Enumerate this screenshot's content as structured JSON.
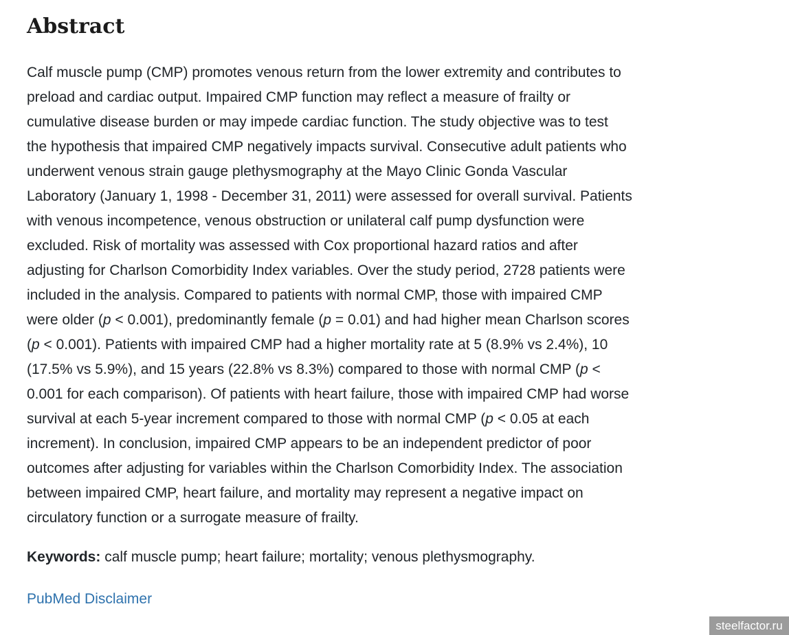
{
  "colors": {
    "page_background": "#ffffff",
    "heading_text": "#1b1b1b",
    "body_text": "#212529",
    "link_blue": "#2e72ad",
    "watermark_background": "#9b9b9b",
    "watermark_text": "#ffffff"
  },
  "abstract": {
    "heading": "Abstract",
    "body_segments": [
      {
        "text": "Calf muscle pump (CMP) promotes venous return from the lower extremity and contributes to\npreload and cardiac output. Impaired CMP function may reflect a measure of frailty or\ncumulative disease burden or may impede cardiac function. The study objective was to test\nthe hypothesis that impaired CMP negatively impacts survival. Consecutive adult patients who\nunderwent venous strain gauge plethysmography at the Mayo Clinic Gonda Vascular\nLaboratory (January 1, 1998 - December 31, 2011) were assessed for overall survival. Patients\nwith venous incompetence, venous obstruction or unilateral calf pump dysfunction were\nexcluded. Risk of mortality was assessed with Cox proportional hazard ratios and after\nadjusting for Charlson Comorbidity Index variables. Over the study period, 2728 patients were\nincluded in the analysis. Compared to patients with normal CMP, those with impaired CMP\nwere older ("
      },
      {
        "text": "p",
        "italic": true
      },
      {
        "text": " < 0.001), predominantly female ("
      },
      {
        "text": "p",
        "italic": true
      },
      {
        "text": " = 0.01) and had higher mean Charlson scores\n("
      },
      {
        "text": "p",
        "italic": true
      },
      {
        "text": " < 0.001). Patients with impaired CMP had a higher mortality rate at 5 (8.9% vs 2.4%), 10\n(17.5% vs 5.9%), and 15 years (22.8% vs 8.3%) compared to those with normal CMP ("
      },
      {
        "text": "p",
        "italic": true
      },
      {
        "text": " <\n0.001 for each comparison). Of patients with heart failure, those with impaired CMP had worse\nsurvival at each 5-year increment compared to those with normal CMP ("
      },
      {
        "text": "p",
        "italic": true
      },
      {
        "text": " < 0.05 at each\nincrement). In conclusion, impaired CMP appears to be an independent predictor of poor\noutcomes after adjusting for variables within the Charlson Comorbidity Index. The association\nbetween impaired CMP, heart failure, and mortality may represent a negative impact on\ncirculatory function or a surrogate measure of frailty."
      }
    ]
  },
  "keywords": {
    "label": "Keywords:",
    "value": " calf muscle pump; heart failure; mortality; venous plethysmography."
  },
  "footer": {
    "disclaimer_link": "PubMed Disclaimer"
  },
  "watermark": {
    "text": "steelfactor.ru"
  }
}
